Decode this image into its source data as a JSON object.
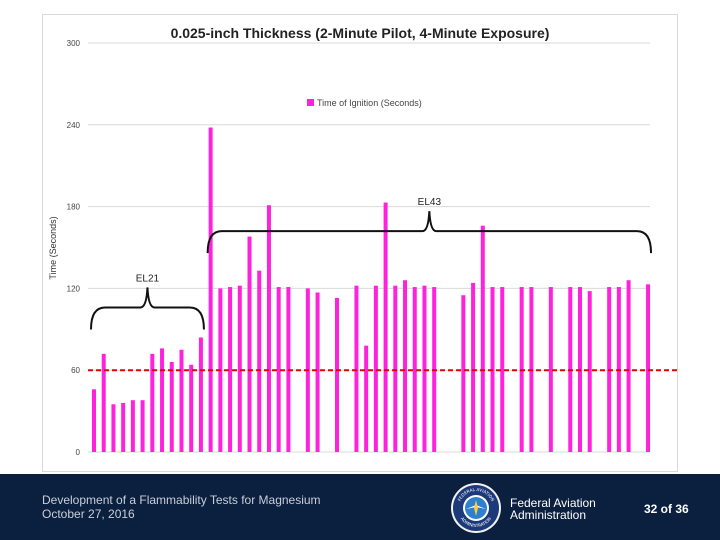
{
  "chart_data": {
    "type": "bar",
    "title": "0.025-inch Thickness (2-Minute Pilot, 4-Minute Exposure)",
    "xlabel": "",
    "ylabel": "Time (Seconds)",
    "ylim": [
      0,
      300
    ],
    "yticks": [
      0,
      60,
      120,
      180,
      240,
      300
    ],
    "grid": true,
    "legend": {
      "position": "top-center",
      "entries": [
        "Time of Ignition (Seconds)"
      ]
    },
    "series": [
      {
        "name": "Time of Ignition (Seconds)",
        "color": "#ff22dd",
        "values": [
          46,
          72,
          35,
          36,
          38,
          38,
          72,
          76,
          66,
          75,
          64,
          84,
          238,
          120,
          121,
          122,
          158,
          133,
          181,
          121,
          121,
          null,
          120,
          117,
          null,
          113,
          null,
          122,
          78,
          122,
          183,
          122,
          126,
          121,
          122,
          121,
          null,
          null,
          115,
          124,
          166,
          121,
          121,
          null,
          121,
          121,
          null,
          121,
          null,
          121,
          121,
          118,
          null,
          121,
          121,
          126,
          null,
          123
        ]
      }
    ],
    "threshold": {
      "value": 60,
      "color": "#e60000",
      "style": "dashed"
    },
    "annotations": [
      {
        "label": "EL21",
        "from_bar": 0,
        "to_bar": 11,
        "bracket_height": 106
      },
      {
        "label": "EL43",
        "from_bar": 12,
        "to_bar": 57,
        "bracket_height": 162
      }
    ]
  },
  "footer": {
    "line1": "Development of a Flammability Tests for Magnesium",
    "line2": "October 27, 2016",
    "agency_line1": "Federal Aviation",
    "agency_line2": "Administration",
    "page": "32 of 36",
    "seal_top_text": "FEDERAL AVIATION",
    "seal_bottom_text": "ADMINISTRATION"
  },
  "colors": {
    "footer_bg": "#0b1f3f",
    "bar": "#ff22dd",
    "threshold": "#e60000"
  }
}
